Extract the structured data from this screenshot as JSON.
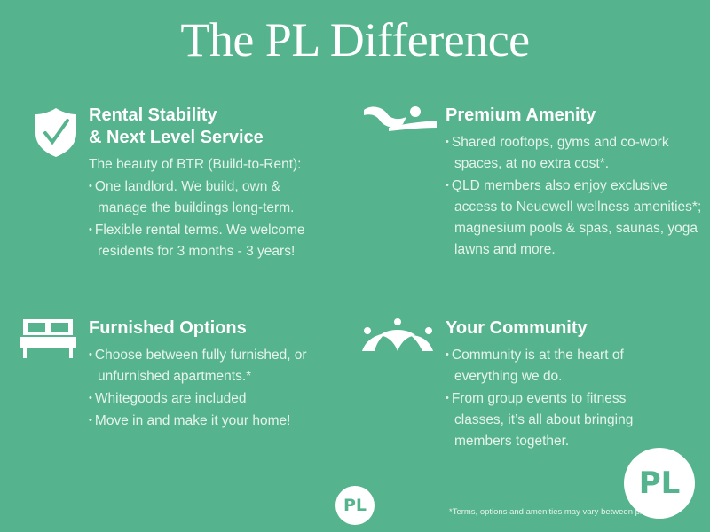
{
  "title": "The PL Difference",
  "sections": [
    {
      "icon": "shield-check-icon",
      "title_lines": [
        "Rental Stability",
        "& Next Level Service"
      ],
      "intro": "The beauty of BTR (Build-to-Rent):",
      "bullets": [
        "One landlord. We build, own & manage the buildings long-term.",
        "Flexible rental terms. We welcome residents for 3 months - 3 years!"
      ]
    },
    {
      "icon": "swimmer-icon",
      "title_lines": [
        "Premium Amenity"
      ],
      "bullets": [
        "Shared rooftops, gyms and co-work spaces, at no extra cost*.",
        "QLD members also enjoy exclusive access to Neuewell wellness amenities*; magnesium pools & spas, saunas, yoga lawns and more."
      ]
    },
    {
      "icon": "bed-icon",
      "title_lines": [
        "Furnished Options"
      ],
      "bullets": [
        "Choose between fully furnished, or unfurnished apartments.*",
        "Whitegoods are included",
        "Move in and make it your home!"
      ]
    },
    {
      "icon": "community-icon",
      "title_lines": [
        "Your Community"
      ],
      "bullets": [
        "Community is at the heart of everything we do.",
        "From group events to fitness classes, it’s all about bringing members together."
      ]
    }
  ],
  "logo_text": "PL",
  "footnote": "*Terms, options and amenities may vary between properties.",
  "colors": {
    "background": "#55b38e",
    "text": "#ffffff"
  }
}
